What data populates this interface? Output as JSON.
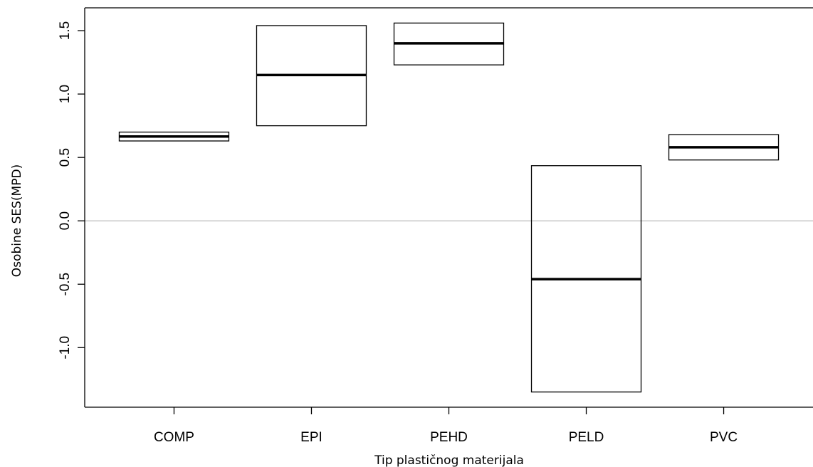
{
  "chart_data": {
    "type": "boxplot",
    "title": "",
    "xlabel": "Tip plastičnog materijala",
    "ylabel": "Osobine SES(MPD)",
    "categories": [
      "COMP",
      "EPI",
      "PEHD",
      "PELD",
      "PVC"
    ],
    "boxes": [
      {
        "category": "COMP",
        "lower": 0.63,
        "median": 0.665,
        "upper": 0.7
      },
      {
        "category": "EPI",
        "lower": 0.75,
        "median": 1.15,
        "upper": 1.54
      },
      {
        "category": "PEHD",
        "lower": 1.23,
        "median": 1.4,
        "upper": 1.56
      },
      {
        "category": "PELD",
        "lower": -1.35,
        "median": -0.46,
        "upper": 0.435
      },
      {
        "category": "PVC",
        "lower": 0.48,
        "median": 0.58,
        "upper": 0.68
      }
    ],
    "ylim": [
      -1.47,
      1.68
    ],
    "yticks": [
      {
        "value": -1.0,
        "label": "-1.0"
      },
      {
        "value": -0.5,
        "label": "-0.5"
      },
      {
        "value": 0.0,
        "label": "0.0"
      },
      {
        "value": 0.5,
        "label": "0.5"
      },
      {
        "value": 1.0,
        "label": "1.0"
      },
      {
        "value": 1.5,
        "label": "1.5"
      }
    ],
    "reference_line": 0.0,
    "colors": {
      "box": "#000000",
      "reference_line": "#c8c8c8"
    },
    "grid": false,
    "legend": "none"
  }
}
